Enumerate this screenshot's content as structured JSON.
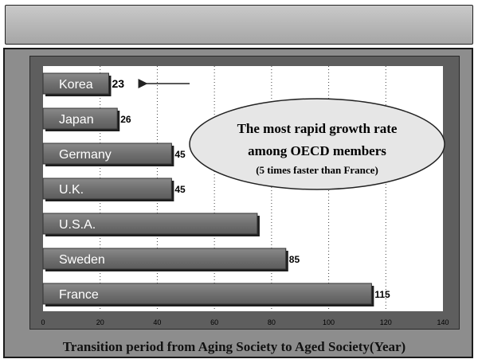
{
  "chart_data": {
    "type": "bar",
    "orientation": "horizontal",
    "categories": [
      "Korea",
      "Japan",
      "Germany",
      "U.K.",
      "U.S.A.",
      "Sweden",
      "France"
    ],
    "values": [
      23,
      26,
      45,
      45,
      75,
      85,
      115
    ],
    "value_labels": [
      "23",
      "26",
      "45",
      "45",
      "",
      "85",
      "115"
    ],
    "xlim": [
      0,
      140
    ],
    "xticks": [
      0,
      20,
      40,
      60,
      80,
      100,
      120,
      140
    ],
    "grid": "vertical dotted",
    "xlabel": "Transition period from Aging Society to Aged Society(Year)",
    "title": "",
    "annotation": {
      "line1": "The most rapid growth rate",
      "line2": "among OECD members",
      "line3": "(5 times faster than France)",
      "points_to": "Korea"
    },
    "colors": {
      "bar": "#717171",
      "plot_background": "#ffffff",
      "frame": "#5e5e5e",
      "callout_fill": "#e6e6e6"
    }
  }
}
